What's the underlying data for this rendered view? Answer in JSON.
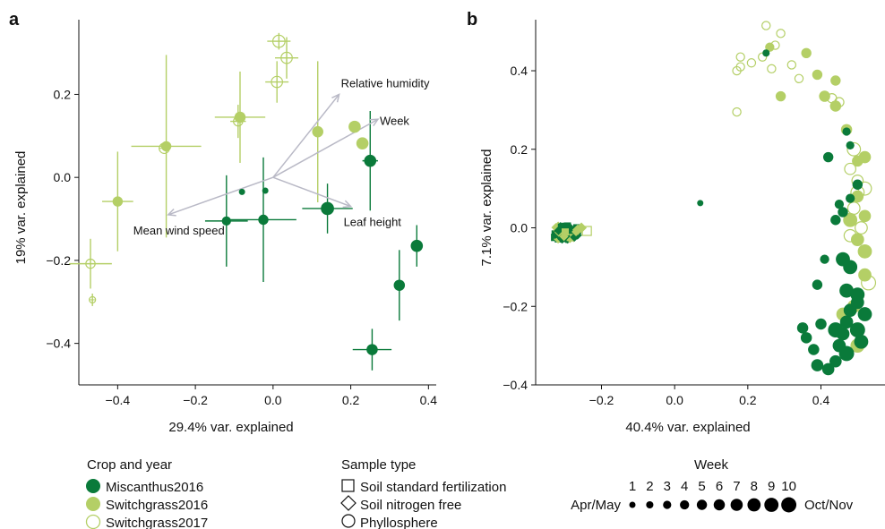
{
  "colors": {
    "miscanthus": "#0a7a3a",
    "switch16": "#b4cf66",
    "switch17": "#b4cf66",
    "arrow": "#b9b9c6",
    "axis": "#111111"
  },
  "legend": {
    "crop_title": "Crop and year",
    "crop_items": [
      {
        "label": "Miscanthus2016",
        "style": "miscanthus"
      },
      {
        "label": "Switchgrass2016",
        "style": "switch16"
      },
      {
        "label": "Switchgrass2017",
        "style": "switch17"
      }
    ],
    "sample_title": "Sample type",
    "sample_items": [
      {
        "label": "Soil standard fertilization",
        "shape": "square"
      },
      {
        "label": "Soil nitrogen free",
        "shape": "diamond"
      },
      {
        "label": "Phyllosphere",
        "shape": "circle"
      }
    ],
    "week_title": "Week",
    "week_numbers": [
      "1",
      "2",
      "3",
      "4",
      "5",
      "6",
      "7",
      "8",
      "9",
      "10"
    ],
    "week_start": "Apr/May",
    "week_end": "Oct/Nov"
  },
  "chart_data": [
    {
      "panel": "a",
      "type": "scatter",
      "xlabel": "29.4% var. explained",
      "ylabel": "19% var. explained",
      "xlim": [
        -0.5,
        0.42
      ],
      "ylim": [
        -0.5,
        0.38
      ],
      "xticks": [
        -0.4,
        -0.2,
        0.0,
        0.2,
        0.4
      ],
      "yticks": [
        -0.4,
        -0.2,
        0.0,
        0.2
      ],
      "xtick_labels": [
        "−0.4",
        "−0.2",
        "0.0",
        "0.2",
        "0.4"
      ],
      "ytick_labels": [
        "−0.4",
        "−0.2",
        "0.0",
        "0.2"
      ],
      "arrows": [
        {
          "label": "Relative humidity",
          "x": 0.17,
          "y": 0.2
        },
        {
          "label": "Week",
          "x": 0.27,
          "y": 0.14
        },
        {
          "label": "Leaf height",
          "x": 0.2,
          "y": -0.07
        },
        {
          "label": "Mean wind speed",
          "x": -0.27,
          "y": -0.09
        }
      ],
      "points": [
        {
          "group": "miscanthus",
          "week": 1,
          "x": -0.08,
          "y": -0.035,
          "xerr": 0.0,
          "yerr": 0.0
        },
        {
          "group": "miscanthus",
          "week": 1,
          "x": -0.02,
          "y": -0.032,
          "xerr": 0.0,
          "yerr": 0.0
        },
        {
          "group": "miscanthus",
          "week": 4,
          "x": -0.12,
          "y": -0.105,
          "xerr": 0.055,
          "yerr": 0.11
        },
        {
          "group": "miscanthus",
          "week": 5,
          "x": -0.025,
          "y": -0.102,
          "xerr": 0.085,
          "yerr": 0.15
        },
        {
          "group": "miscanthus",
          "week": 8,
          "x": 0.14,
          "y": -0.075,
          "xerr": 0.065,
          "yerr": 0.06
        },
        {
          "group": "miscanthus",
          "week": 7,
          "x": 0.25,
          "y": 0.04,
          "xerr": 0.02,
          "yerr": 0.12
        },
        {
          "group": "miscanthus",
          "week": 7,
          "x": 0.37,
          "y": -0.165,
          "xerr": 0.0,
          "yerr": 0.05
        },
        {
          "group": "miscanthus",
          "week": 6,
          "x": 0.325,
          "y": -0.26,
          "xerr": 0.0,
          "yerr": 0.085
        },
        {
          "group": "miscanthus",
          "week": 6,
          "x": 0.255,
          "y": -0.415,
          "xerr": 0.05,
          "yerr": 0.05
        },
        {
          "group": "switch16",
          "week": 5,
          "x": -0.4,
          "y": -0.058,
          "xerr": 0.04,
          "yerr": 0.12
        },
        {
          "group": "switch16",
          "week": 5,
          "x": -0.275,
          "y": 0.075,
          "xerr": 0.09,
          "yerr": 0.22
        },
        {
          "group": "switch16",
          "week": 6,
          "x": -0.085,
          "y": 0.145,
          "xerr": 0.065,
          "yerr": 0.11
        },
        {
          "group": "switch16",
          "week": 6,
          "x": 0.115,
          "y": 0.11,
          "xerr": 0.0,
          "yerr": 0.17
        },
        {
          "group": "switch16",
          "week": 7,
          "x": 0.21,
          "y": 0.122,
          "xerr": 0.0,
          "yerr": 0.0
        },
        {
          "group": "switch16",
          "week": 7,
          "x": 0.23,
          "y": 0.082,
          "xerr": 0.0,
          "yerr": 0.0
        },
        {
          "group": "switch17",
          "week": 4,
          "x": -0.47,
          "y": -0.208,
          "xerr": 0.055,
          "yerr": 0.06
        },
        {
          "group": "switch17",
          "week": 1,
          "x": -0.465,
          "y": -0.295,
          "xerr": 0.0,
          "yerr": 0.015
        },
        {
          "group": "switch17",
          "week": 5,
          "x": -0.28,
          "y": 0.07,
          "xerr": 0.0,
          "yerr": 0.0
        },
        {
          "group": "switch17",
          "week": 4,
          "x": -0.09,
          "y": 0.135,
          "xerr": 0.02,
          "yerr": 0.04
        },
        {
          "group": "switch17",
          "week": 6,
          "x": 0.01,
          "y": 0.23,
          "xerr": 0.03,
          "yerr": 0.05
        },
        {
          "group": "switch17",
          "week": 6,
          "x": 0.035,
          "y": 0.288,
          "xerr": 0.03,
          "yerr": 0.05
        },
        {
          "group": "switch17",
          "week": 7,
          "x": 0.015,
          "y": 0.328,
          "xerr": 0.03,
          "yerr": 0.02
        }
      ]
    },
    {
      "panel": "b",
      "type": "scatter",
      "xlabel": "40.4% var. explained",
      "ylabel": "7.1% var. explained",
      "xlim": [
        -0.38,
        0.58
      ],
      "ylim": [
        -0.4,
        0.53
      ],
      "xticks": [
        -0.2,
        0.0,
        0.2,
        0.4
      ],
      "yticks": [
        -0.4,
        -0.2,
        0.0,
        0.2,
        0.4
      ],
      "xtick_labels": [
        "−0.2",
        "0.0",
        "0.2",
        "0.4"
      ],
      "ytick_labels": [
        "−0.4",
        "−0.2",
        "0.0",
        "0.2",
        "0.4"
      ],
      "soil_cluster": {
        "x_range": [
          -0.33,
          -0.24
        ],
        "y_range": [
          -0.03,
          0.005
        ]
      },
      "points": [
        {
          "group": "miscanthus",
          "week": 1,
          "x": 0.07,
          "y": 0.063
        },
        {
          "group": "miscanthus",
          "week": 2,
          "x": 0.25,
          "y": 0.445
        },
        {
          "group": "miscanthus",
          "week": 3,
          "x": 0.47,
          "y": 0.245
        },
        {
          "group": "miscanthus",
          "week": 3,
          "x": 0.48,
          "y": 0.21
        },
        {
          "group": "miscanthus",
          "week": 4,
          "x": 0.45,
          "y": 0.06
        },
        {
          "group": "miscanthus",
          "week": 4,
          "x": 0.48,
          "y": 0.075
        },
        {
          "group": "miscanthus",
          "week": 5,
          "x": 0.5,
          "y": 0.11
        },
        {
          "group": "miscanthus",
          "week": 5,
          "x": 0.44,
          "y": 0.02
        },
        {
          "group": "miscanthus",
          "week": 5,
          "x": 0.46,
          "y": 0.04
        },
        {
          "group": "miscanthus",
          "week": 5,
          "x": 0.42,
          "y": 0.18
        },
        {
          "group": "miscanthus",
          "week": 4,
          "x": 0.41,
          "y": -0.08
        },
        {
          "group": "miscanthus",
          "week": 5,
          "x": 0.39,
          "y": -0.145
        },
        {
          "group": "miscanthus",
          "week": 6,
          "x": 0.35,
          "y": -0.255
        },
        {
          "group": "miscanthus",
          "week": 6,
          "x": 0.36,
          "y": -0.28
        },
        {
          "group": "miscanthus",
          "week": 6,
          "x": 0.38,
          "y": -0.31
        },
        {
          "group": "miscanthus",
          "week": 6,
          "x": 0.4,
          "y": -0.245
        },
        {
          "group": "miscanthus",
          "week": 7,
          "x": 0.39,
          "y": -0.35
        },
        {
          "group": "miscanthus",
          "week": 7,
          "x": 0.42,
          "y": -0.36
        },
        {
          "group": "miscanthus",
          "week": 7,
          "x": 0.44,
          "y": -0.34
        },
        {
          "group": "miscanthus",
          "week": 8,
          "x": 0.45,
          "y": -0.3
        },
        {
          "group": "miscanthus",
          "week": 8,
          "x": 0.46,
          "y": -0.27
        },
        {
          "group": "miscanthus",
          "week": 8,
          "x": 0.47,
          "y": -0.24
        },
        {
          "group": "miscanthus",
          "week": 8,
          "x": 0.48,
          "y": -0.21
        },
        {
          "group": "miscanthus",
          "week": 8,
          "x": 0.5,
          "y": -0.19
        },
        {
          "group": "miscanthus",
          "week": 9,
          "x": 0.47,
          "y": -0.16
        },
        {
          "group": "miscanthus",
          "week": 9,
          "x": 0.5,
          "y": -0.17
        },
        {
          "group": "miscanthus",
          "week": 9,
          "x": 0.52,
          "y": -0.22
        },
        {
          "group": "miscanthus",
          "week": 9,
          "x": 0.51,
          "y": -0.29
        },
        {
          "group": "miscanthus",
          "week": 9,
          "x": 0.46,
          "y": -0.08
        },
        {
          "group": "miscanthus",
          "week": 9,
          "x": 0.48,
          "y": -0.1
        },
        {
          "group": "miscanthus",
          "week": 10,
          "x": 0.5,
          "y": -0.26
        },
        {
          "group": "miscanthus",
          "week": 10,
          "x": 0.47,
          "y": -0.32
        },
        {
          "group": "miscanthus",
          "week": 10,
          "x": 0.44,
          "y": -0.26
        },
        {
          "group": "switch16",
          "week": 4,
          "x": 0.26,
          "y": 0.46
        },
        {
          "group": "switch16",
          "week": 5,
          "x": 0.29,
          "y": 0.335
        },
        {
          "group": "switch16",
          "week": 5,
          "x": 0.36,
          "y": 0.445
        },
        {
          "group": "switch16",
          "week": 5,
          "x": 0.39,
          "y": 0.39
        },
        {
          "group": "switch16",
          "week": 5,
          "x": 0.44,
          "y": 0.375
        },
        {
          "group": "switch16",
          "week": 6,
          "x": 0.41,
          "y": 0.335
        },
        {
          "group": "switch16",
          "week": 6,
          "x": 0.44,
          "y": 0.31
        },
        {
          "group": "switch16",
          "week": 6,
          "x": 0.47,
          "y": 0.25
        },
        {
          "group": "switch16",
          "week": 6,
          "x": 0.5,
          "y": 0.17
        },
        {
          "group": "switch16",
          "week": 7,
          "x": 0.52,
          "y": 0.18
        },
        {
          "group": "switch16",
          "week": 7,
          "x": 0.5,
          "y": 0.08
        },
        {
          "group": "switch16",
          "week": 7,
          "x": 0.52,
          "y": 0.03
        },
        {
          "group": "switch16",
          "week": 8,
          "x": 0.5,
          "y": -0.03
        },
        {
          "group": "switch16",
          "week": 8,
          "x": 0.52,
          "y": -0.12
        },
        {
          "group": "switch16",
          "week": 8,
          "x": 0.49,
          "y": -0.2
        },
        {
          "group": "switch16",
          "week": 8,
          "x": 0.46,
          "y": -0.22
        },
        {
          "group": "switch16",
          "week": 9,
          "x": 0.52,
          "y": -0.06
        },
        {
          "group": "switch16",
          "week": 9,
          "x": 0.48,
          "y": 0.02
        },
        {
          "group": "switch16",
          "week": 9,
          "x": 0.5,
          "y": -0.3
        },
        {
          "group": "switch17",
          "week": 3,
          "x": 0.17,
          "y": 0.295
        },
        {
          "group": "switch17",
          "week": 3,
          "x": 0.17,
          "y": 0.4
        },
        {
          "group": "switch17",
          "week": 3,
          "x": 0.18,
          "y": 0.41
        },
        {
          "group": "switch17",
          "week": 3,
          "x": 0.18,
          "y": 0.435
        },
        {
          "group": "switch17",
          "week": 3,
          "x": 0.21,
          "y": 0.42
        },
        {
          "group": "switch17",
          "week": 3,
          "x": 0.24,
          "y": 0.435
        },
        {
          "group": "switch17",
          "week": 3,
          "x": 0.265,
          "y": 0.405
        },
        {
          "group": "switch17",
          "week": 3,
          "x": 0.275,
          "y": 0.465
        },
        {
          "group": "switch17",
          "week": 3,
          "x": 0.29,
          "y": 0.495
        },
        {
          "group": "switch17",
          "week": 3,
          "x": 0.25,
          "y": 0.515
        },
        {
          "group": "switch17",
          "week": 3,
          "x": 0.32,
          "y": 0.415
        },
        {
          "group": "switch17",
          "week": 3,
          "x": 0.34,
          "y": 0.38
        },
        {
          "group": "switch17",
          "week": 4,
          "x": 0.43,
          "y": 0.33
        },
        {
          "group": "switch17",
          "week": 4,
          "x": 0.45,
          "y": 0.32
        },
        {
          "group": "switch17",
          "week": 6,
          "x": 0.48,
          "y": 0.15
        },
        {
          "group": "switch17",
          "week": 6,
          "x": 0.5,
          "y": 0.12
        },
        {
          "group": "switch17",
          "week": 7,
          "x": 0.49,
          "y": 0.05
        },
        {
          "group": "switch17",
          "week": 7,
          "x": 0.51,
          "y": 0.0
        },
        {
          "group": "switch17",
          "week": 7,
          "x": 0.48,
          "y": -0.02
        },
        {
          "group": "switch17",
          "week": 8,
          "x": 0.5,
          "y": 0.09
        },
        {
          "group": "switch17",
          "week": 8,
          "x": 0.52,
          "y": 0.1
        },
        {
          "group": "switch17",
          "week": 8,
          "x": 0.49,
          "y": 0.2
        },
        {
          "group": "switch17",
          "week": 9,
          "x": 0.53,
          "y": -0.14
        }
      ]
    }
  ]
}
